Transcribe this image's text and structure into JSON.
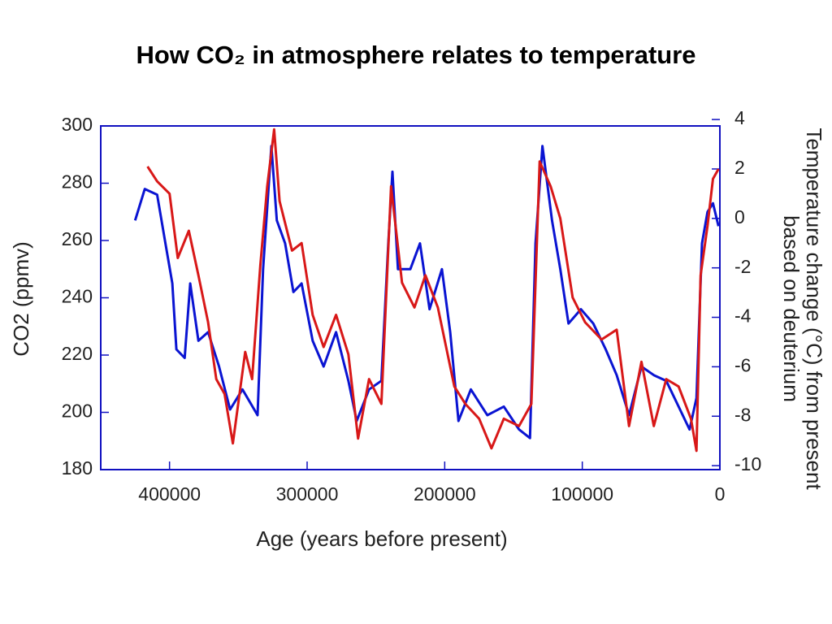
{
  "chart_data": {
    "type": "line",
    "title": "How CO₂ in atmosphere relates to temperature",
    "xlabel": "Age (years before present)",
    "ylabel": "CO2 (ppmv)",
    "y2label": [
      "Temperature change (°C) from present",
      "based on deuterium"
    ],
    "xlim": [
      450000,
      0
    ],
    "xticks": [
      400000,
      300000,
      200000,
      100000,
      0
    ],
    "ylim": [
      180,
      300
    ],
    "yticks": [
      180,
      200,
      220,
      240,
      260,
      280,
      300
    ],
    "y2lim": [
      -10.16,
      3.74
    ],
    "y2ticks": [
      -10,
      -8,
      -6,
      -4,
      -2,
      0,
      2,
      4
    ],
    "series": [
      {
        "name": "CO2",
        "color": "#0a14d2",
        "axis": "y",
        "x": [
          425000,
          418000,
          409000,
          403000,
          398000,
          395000,
          389000,
          385000,
          379000,
          372000,
          364000,
          356000,
          347000,
          336000,
          332000,
          326000,
          322000,
          316000,
          310000,
          304000,
          296000,
          288000,
          279000,
          270000,
          264000,
          255000,
          246000,
          241000,
          238000,
          234000,
          225000,
          218000,
          211000,
          202000,
          196000,
          190000,
          181000,
          169000,
          157000,
          146000,
          138000,
          134000,
          129000,
          122000,
          116000,
          110000,
          101000,
          92000,
          83000,
          75000,
          66000,
          57000,
          48000,
          39000,
          30000,
          22000,
          17000,
          13000,
          9000,
          5000,
          1000
        ],
        "values": [
          267,
          278,
          276,
          259,
          245,
          222,
          219,
          245,
          225,
          228,
          216,
          201,
          208,
          199,
          250,
          293,
          267,
          259,
          242,
          245,
          225,
          216,
          228,
          211,
          197,
          208,
          211,
          259,
          284,
          250,
          250,
          259,
          236,
          250,
          228,
          197,
          208,
          199,
          202,
          194,
          191,
          259,
          293,
          267,
          250,
          231,
          236,
          231,
          222,
          213,
          199,
          216,
          213,
          211,
          202,
          194,
          205,
          259,
          270,
          273,
          265
        ]
      },
      {
        "name": "Temperature",
        "color": "#d81818",
        "axis": "y2",
        "x": [
          416000,
          409000,
          400000,
          394000,
          386000,
          379000,
          372000,
          366000,
          360000,
          354000,
          345000,
          340000,
          334000,
          329000,
          324000,
          320000,
          311000,
          304000,
          296000,
          288000,
          279000,
          270000,
          263000,
          255000,
          246000,
          239000,
          231000,
          222000,
          214000,
          205000,
          193000,
          185000,
          175000,
          166000,
          157000,
          146000,
          137000,
          131000,
          123000,
          116000,
          107000,
          98000,
          86000,
          75000,
          66000,
          57000,
          48000,
          39000,
          30000,
          21000,
          17000,
          14000,
          9000,
          5000,
          1000
        ],
        "values": [
          2.1,
          1.5,
          1.0,
          -1.6,
          -0.5,
          -2.3,
          -4.2,
          -6.5,
          -7.1,
          -9.1,
          -5.4,
          -6.5,
          -1.9,
          1.3,
          3.6,
          0.7,
          -1.3,
          -1.0,
          -3.9,
          -5.2,
          -3.9,
          -5.5,
          -8.9,
          -6.5,
          -7.5,
          1.3,
          -2.6,
          -3.6,
          -2.3,
          -3.6,
          -6.8,
          -7.5,
          -8.1,
          -9.3,
          -8.1,
          -8.4,
          -7.5,
          2.3,
          1.3,
          0,
          -3.2,
          -4.2,
          -4.9,
          -4.5,
          -8.4,
          -5.8,
          -8.4,
          -6.5,
          -6.8,
          -8.1,
          -9.4,
          -2.3,
          -0.3,
          1.6,
          2.0
        ]
      }
    ]
  }
}
